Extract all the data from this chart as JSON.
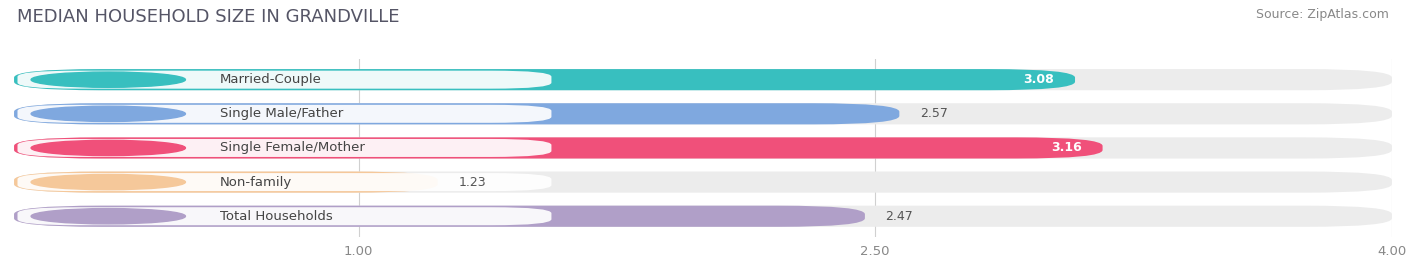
{
  "title": "MEDIAN HOUSEHOLD SIZE IN GRANDVILLE",
  "source": "Source: ZipAtlas.com",
  "categories": [
    "Married-Couple",
    "Single Male/Father",
    "Single Female/Mother",
    "Non-family",
    "Total Households"
  ],
  "values": [
    3.08,
    2.57,
    3.16,
    1.23,
    2.47
  ],
  "bar_colors": [
    "#38bfbf",
    "#7fa8df",
    "#f0507a",
    "#f5c89a",
    "#b09fc8"
  ],
  "label_bg_colors": [
    "#38bfbf",
    "#7fa8df",
    "#f0507a",
    "#f5c89a",
    "#b09fc8"
  ],
  "track_color": "#ececec",
  "background_color": "#ffffff",
  "xmin": 0.0,
  "xmax": 4.0,
  "xticks": [
    1.0,
    2.5,
    4.0
  ],
  "title_fontsize": 13,
  "source_fontsize": 9,
  "label_fontsize": 9.5,
  "value_fontsize": 9
}
